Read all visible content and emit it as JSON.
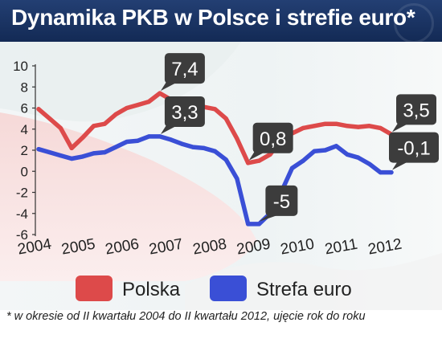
{
  "title": "Dynamika PKB w Polsce i strefie euro*",
  "footnote": "* w okresie od II kwartału 2004 do II kwartału 2012, ujęcie rok do roku",
  "colors": {
    "title_bg": "#1d3766",
    "polska": "#dd4a4a",
    "strefa": "#3a4fd6",
    "callout": "#3c3c3c"
  },
  "chart_data": {
    "type": "line",
    "title": "Dynamika PKB w Polsce i strefie euro*",
    "xlabel": "",
    "ylabel": "",
    "x_ticks": [
      "2004",
      "2005",
      "2006",
      "2007",
      "2008",
      "2009",
      "2010",
      "2011",
      "2012"
    ],
    "y_ticks": [
      "10",
      "8",
      "6",
      "4",
      "2",
      "0",
      "-2",
      "-4",
      "-6"
    ],
    "ylim": [
      -6,
      10
    ],
    "grid": false,
    "legend": "bottom",
    "x": [
      "2004Q2",
      "2004Q3",
      "2004Q4",
      "2005Q1",
      "2005Q2",
      "2005Q3",
      "2005Q4",
      "2006Q1",
      "2006Q2",
      "2006Q3",
      "2006Q4",
      "2007Q1",
      "2007Q2",
      "2007Q3",
      "2007Q4",
      "2008Q1",
      "2008Q2",
      "2008Q3",
      "2008Q4",
      "2009Q1",
      "2009Q2",
      "2009Q3",
      "2009Q4",
      "2010Q1",
      "2010Q2",
      "2010Q3",
      "2010Q4",
      "2011Q1",
      "2011Q2",
      "2011Q3",
      "2011Q4",
      "2012Q1",
      "2012Q2"
    ],
    "series": [
      {
        "name": "Polska",
        "values": [
          5.9,
          5.0,
          4.1,
          2.2,
          3.2,
          4.3,
          4.5,
          5.4,
          6.0,
          6.3,
          6.6,
          7.4,
          6.8,
          6.2,
          6.3,
          6.1,
          5.9,
          5.0,
          3.1,
          0.8,
          1.0,
          1.6,
          3.0,
          3.6,
          4.1,
          4.3,
          4.5,
          4.5,
          4.3,
          4.2,
          4.3,
          4.1,
          3.5
        ]
      },
      {
        "name": "Strefa euro",
        "values": [
          2.1,
          1.8,
          1.5,
          1.2,
          1.4,
          1.7,
          1.8,
          2.3,
          2.8,
          2.9,
          3.3,
          3.3,
          3.0,
          2.6,
          2.3,
          2.2,
          1.9,
          1.1,
          -0.7,
          -5.0,
          -5.0,
          -4.0,
          -2.0,
          0.3,
          1.0,
          1.9,
          2.0,
          2.4,
          1.6,
          1.3,
          0.7,
          -0.1,
          -0.1
        ]
      }
    ],
    "callouts": [
      {
        "series": 0,
        "index": 11,
        "text": "7,4"
      },
      {
        "series": 1,
        "index": 11,
        "text": "3,3"
      },
      {
        "series": 0,
        "index": 19,
        "text": "0,8"
      },
      {
        "series": 1,
        "index": 20,
        "text": "-5"
      },
      {
        "series": 0,
        "index": 32,
        "text": "3,5"
      },
      {
        "series": 1,
        "index": 32,
        "text": "-0,1"
      }
    ]
  }
}
